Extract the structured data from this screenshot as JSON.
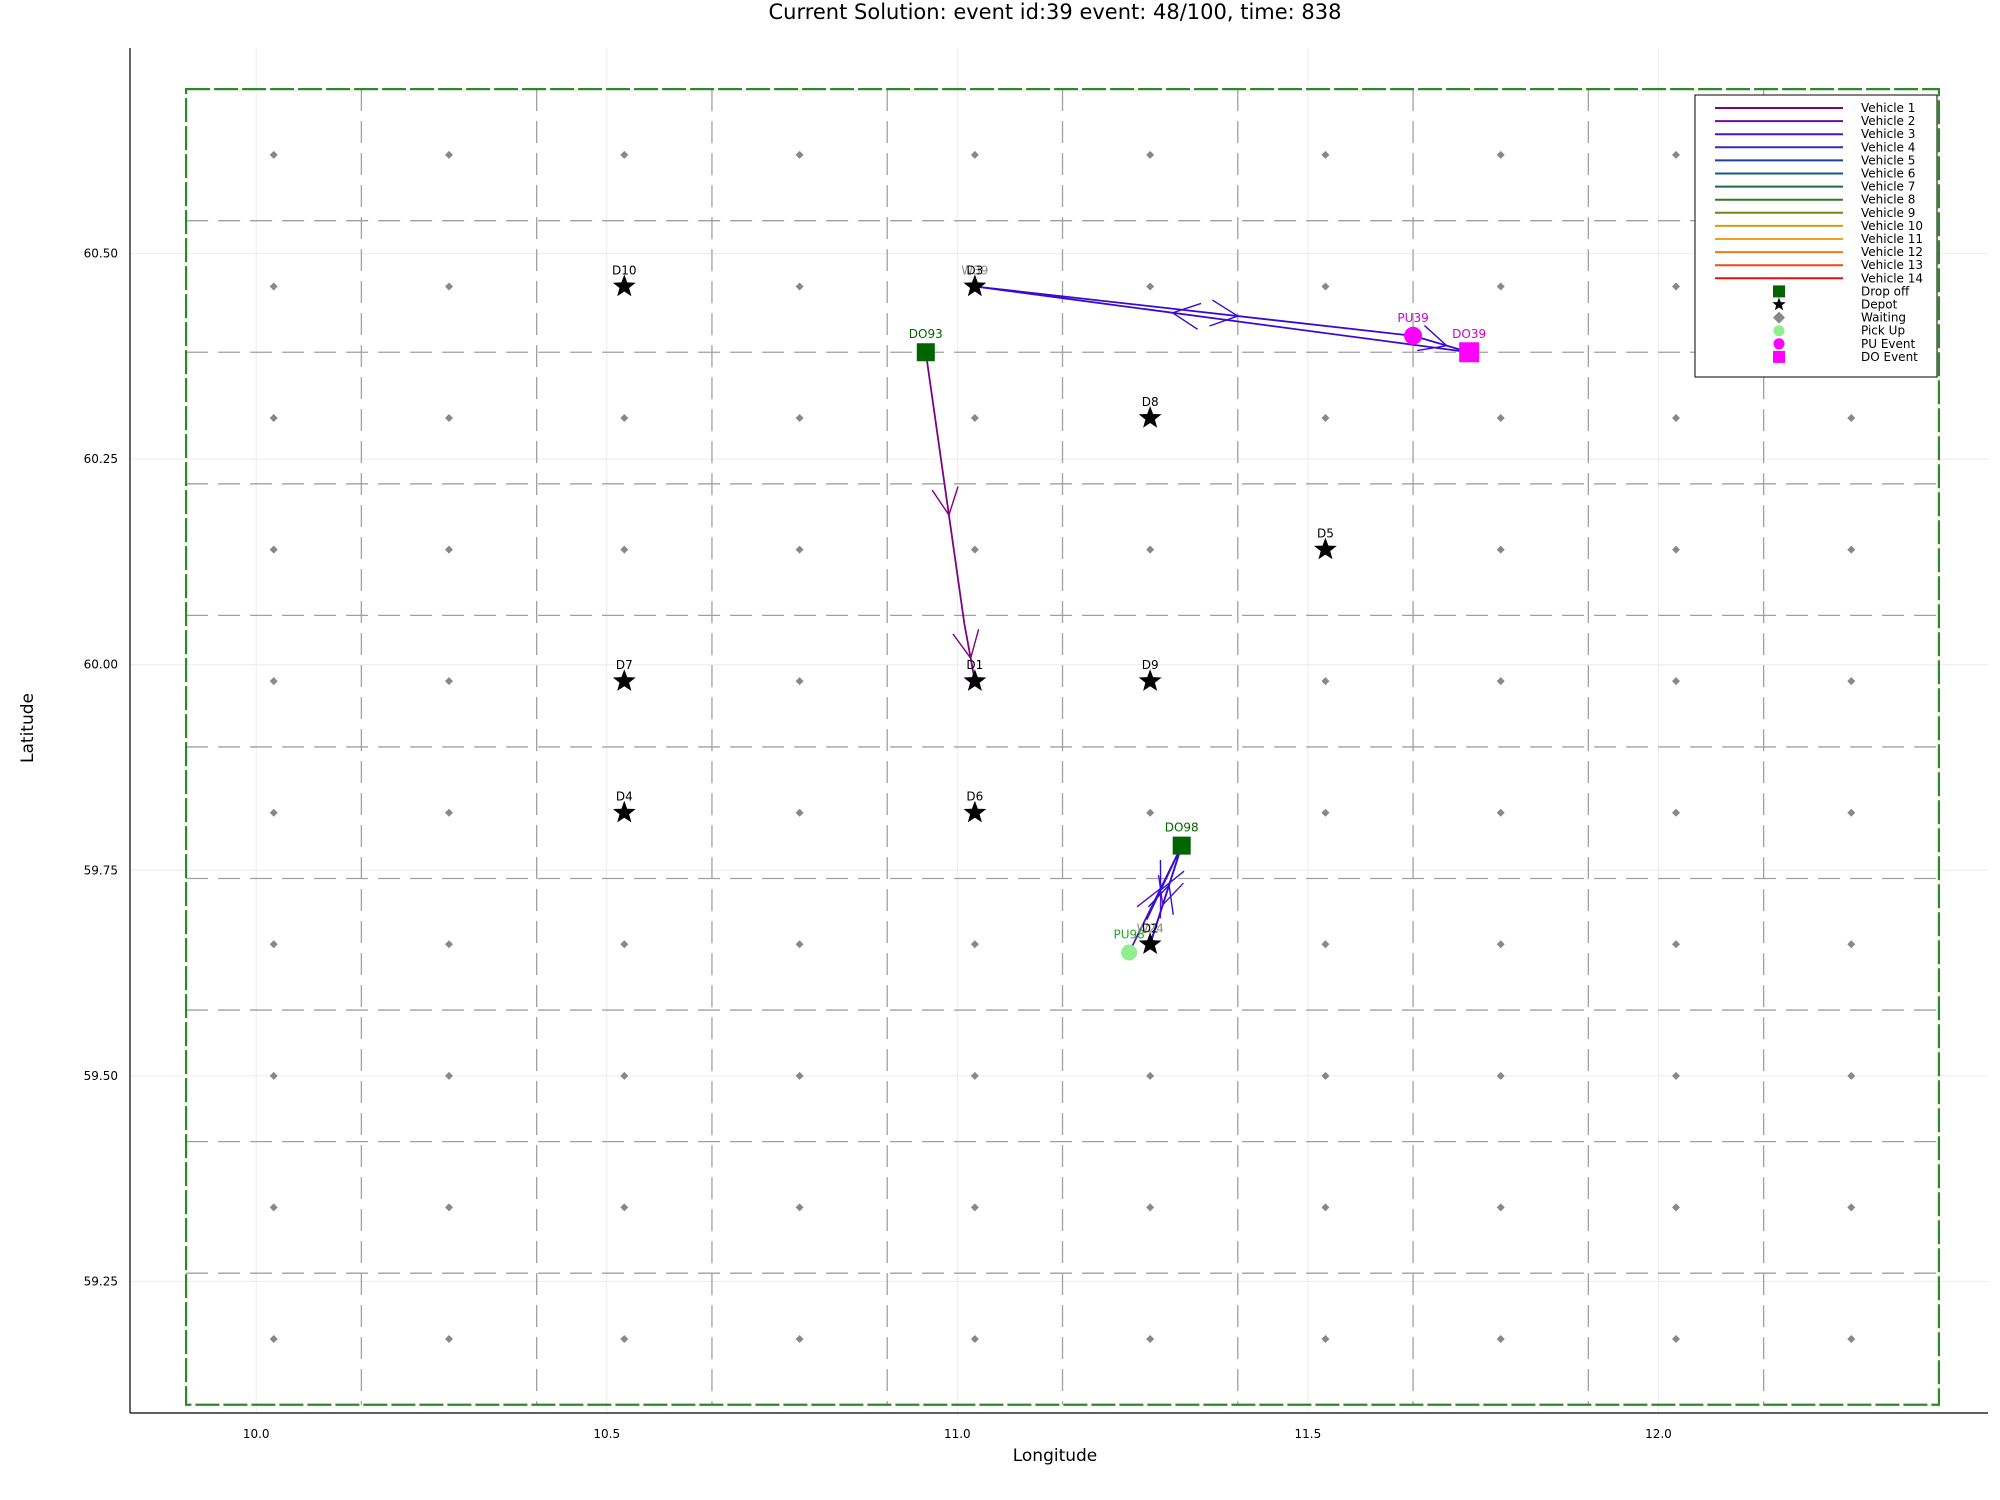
{
  "chart_data": {
    "type": "scatter",
    "title": "Current Solution: event id:39 event: 48/100, time: 838",
    "xlabel": "Longitude",
    "ylabel": "Latitude",
    "xlim": [
      9.82,
      12.47
    ],
    "ylim": [
      59.09,
      60.75
    ],
    "xticks": [
      {
        "value": 10.0,
        "label": "10.0"
      },
      {
        "value": 10.5,
        "label": "10.5"
      },
      {
        "value": 11.0,
        "label": "11.0"
      },
      {
        "value": 11.5,
        "label": "11.5"
      },
      {
        "value": 12.0,
        "label": "12.0"
      }
    ],
    "yticks": [
      {
        "value": 59.25,
        "label": "59.25"
      },
      {
        "value": 59.5,
        "label": "59.50"
      },
      {
        "value": 59.75,
        "label": "59.75"
      },
      {
        "value": 60.0,
        "label": "60.00"
      },
      {
        "value": 60.25,
        "label": "60.25"
      },
      {
        "value": 60.5,
        "label": "60.50"
      }
    ],
    "grid": true,
    "legend_position": "top-right",
    "colors": {
      "boundary": "#2a8a2a",
      "cell_line": "#a0a0a0",
      "waiting": "#888888",
      "depot": "#000000",
      "drop_off": "#006400",
      "pick_up": "#90ee90",
      "event": "#ff00ff"
    },
    "region": {
      "x": [
        9.9,
        12.4
      ],
      "y": [
        59.1,
        60.7
      ]
    },
    "cell_grid": {
      "vlines": [
        10.15,
        10.4,
        10.65,
        10.9,
        11.15,
        11.4,
        11.65,
        11.9,
        12.15
      ],
      "hlines": [
        59.26,
        59.42,
        59.58,
        59.74,
        59.9,
        60.06,
        60.22,
        60.38,
        60.54
      ]
    },
    "waiting_points": {
      "x": [
        10.025,
        10.275,
        10.525,
        10.775,
        11.025,
        11.275,
        11.525,
        11.775,
        12.025,
        12.275
      ],
      "y": [
        59.18,
        59.34,
        59.5,
        59.66,
        59.82,
        59.98,
        60.14,
        60.3,
        60.46,
        60.62
      ]
    },
    "depots": [
      {
        "label": "D10",
        "x": 10.525,
        "y": 60.46
      },
      {
        "label": "D3",
        "x": 11.025,
        "y": 60.46
      },
      {
        "label": "D8",
        "x": 11.275,
        "y": 60.3
      },
      {
        "label": "D5",
        "x": 11.525,
        "y": 60.14
      },
      {
        "label": "D7",
        "x": 10.525,
        "y": 59.98
      },
      {
        "label": "D1",
        "x": 11.025,
        "y": 59.98
      },
      {
        "label": "D9",
        "x": 11.275,
        "y": 59.98
      },
      {
        "label": "D4",
        "x": 10.525,
        "y": 59.82
      },
      {
        "label": "D6",
        "x": 11.025,
        "y": 59.82
      },
      {
        "label": "D2",
        "x": 11.275,
        "y": 59.66
      }
    ],
    "drop_offs": [
      {
        "label": "DO93",
        "x": 10.955,
        "y": 60.38
      },
      {
        "label": "DO98",
        "x": 11.32,
        "y": 59.78
      }
    ],
    "pick_ups": [
      {
        "label": "PU98",
        "x": 11.245,
        "y": 59.65
      }
    ],
    "waiting_labels": [
      {
        "label": "W39",
        "x": 11.025,
        "y": 60.46
      },
      {
        "label": "W24",
        "x": 11.275,
        "y": 59.66
      }
    ],
    "events": [
      {
        "label": "PU39",
        "kind": "pick_up",
        "x": 11.65,
        "y": 60.4
      },
      {
        "label": "DO39",
        "kind": "drop_off",
        "x": 11.73,
        "y": 60.38
      }
    ],
    "routes": [
      {
        "vehicle": "Vehicle 1",
        "color": "#800080",
        "points": [
          [
            10.955,
            60.38
          ],
          [
            11.01,
            60.05
          ],
          [
            11.025,
            59.98
          ]
        ]
      },
      {
        "vehicle": "Vehicle 3",
        "color": "#3b0ad0",
        "points": [
          [
            11.025,
            60.46
          ],
          [
            11.65,
            60.4
          ],
          [
            11.73,
            60.38
          ],
          [
            11.025,
            60.46
          ]
        ]
      },
      {
        "vehicle": "Vehicle 2",
        "color": "#5a10c0",
        "points": [
          [
            11.245,
            59.65
          ],
          [
            11.32,
            59.78
          ],
          [
            11.275,
            59.66
          ]
        ]
      },
      {
        "vehicle": "Vehicle 4",
        "color": "#3010d0",
        "points": [
          [
            11.275,
            59.66
          ],
          [
            11.32,
            59.78
          ],
          [
            11.27,
            59.69
          ]
        ]
      }
    ],
    "legend": [
      {
        "label": "Vehicle 1",
        "kind": "line",
        "color": "#800080"
      },
      {
        "label": "Vehicle 2",
        "kind": "line",
        "color": "#6a0dad"
      },
      {
        "label": "Vehicle 3",
        "kind": "line",
        "color": "#4b14c8"
      },
      {
        "label": "Vehicle 4",
        "kind": "line",
        "color": "#2d2dc0"
      },
      {
        "label": "Vehicle 5",
        "kind": "line",
        "color": "#1f3f9f"
      },
      {
        "label": "Vehicle 6",
        "kind": "line",
        "color": "#1a5a80"
      },
      {
        "label": "Vehicle 7",
        "kind": "line",
        "color": "#146e3c"
      },
      {
        "label": "Vehicle 8",
        "kind": "line",
        "color": "#2e7d1e"
      },
      {
        "label": "Vehicle 9",
        "kind": "line",
        "color": "#6a8a10"
      },
      {
        "label": "Vehicle 10",
        "kind": "line",
        "color": "#c8a020"
      },
      {
        "label": "Vehicle 11",
        "kind": "line",
        "color": "#f0a020"
      },
      {
        "label": "Vehicle 12",
        "kind": "line",
        "color": "#f07818"
      },
      {
        "label": "Vehicle 13",
        "kind": "line",
        "color": "#f04a10"
      },
      {
        "label": "Vehicle 14",
        "kind": "line",
        "color": "#e81010"
      },
      {
        "label": "Drop off",
        "kind": "square",
        "color": "#006400"
      },
      {
        "label": "Depot",
        "kind": "star",
        "color": "#000000"
      },
      {
        "label": "Waiting",
        "kind": "diamond",
        "color": "#888888"
      },
      {
        "label": "Pick Up",
        "kind": "circle",
        "color": "#90ee90"
      },
      {
        "label": "PU Event",
        "kind": "circle",
        "color": "#ff00ff"
      },
      {
        "label": "DO Event",
        "kind": "square",
        "color": "#ff00ff"
      }
    ]
  }
}
